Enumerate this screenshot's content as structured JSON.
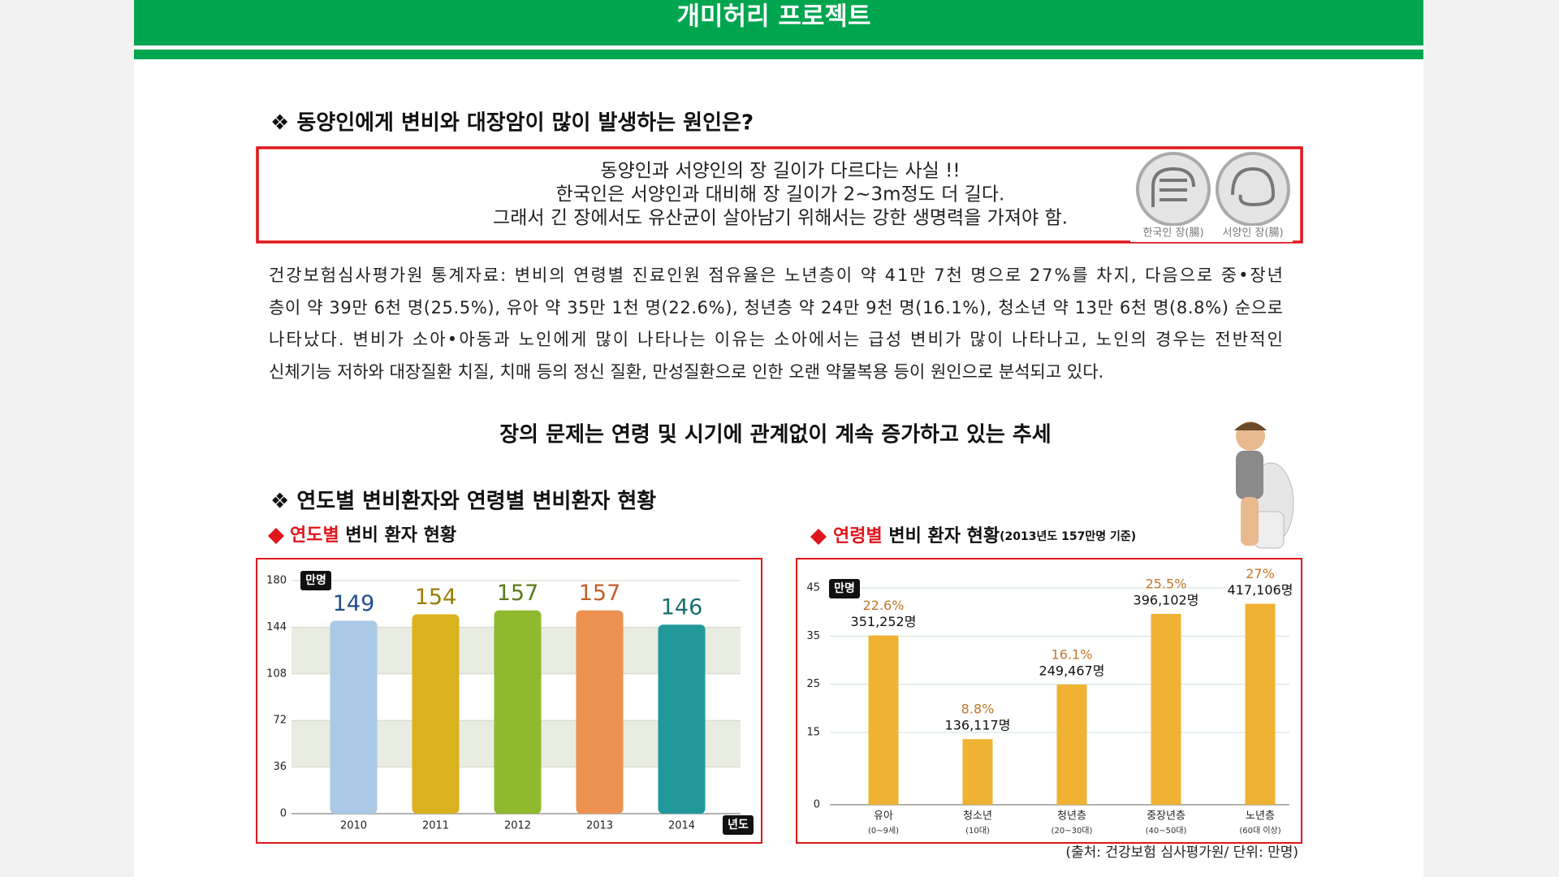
{
  "header": {
    "title": "개미허리 프로젝트"
  },
  "section1": {
    "heading": "❖ 동양인에게 변비와 대장암이 많이 발생하는 원인은?",
    "box_lines": [
      "동양인과 서양인의 장 길이가 다르다는 사실 !!",
      "한국인은 서양인과 대비해 장 길이가 2~3m정도 더 길다.",
      "그래서 긴 장에서도 유산균이 살아남기 위해서는 강한 생명력을 가져야 함."
    ],
    "icon_labels": [
      "한국인 장(腸)",
      "서양인 장(腸)"
    ]
  },
  "paragraph_lines": [
    "건강보험심사평가원 통계자료: 변비의 연령별 진료인원 점유율은 노년층이 약 41만 7천 명으로 27%를 차지, 다음으로 중•장년",
    "층이 약 39만 6천 명(25.5%), 유아 약 35만 1천 명(22.6%), 청년층 약 24만 9천 명(16.1%), 청소년 약 13만 6천 명(8.8%) 순으로",
    "나타났다. 변비가 소아•아동과 노인에게 많이 나타나는 이유는 소아에서는 급성 변비가 많이 나타나고, 노인의 경우는 전반적인",
    "신체기능 저하와 대장질환 치질, 치매 등의 정신 질환, 만성질환으로 인한 오랜 약물복용 등이 원인으로 분석되고 있다."
  ],
  "trend_heading": "장의 문제는 연령 및 시기에 관계없이 계속 증가하고 있는 추세",
  "section2": {
    "heading": "❖ 연도별 변비환자와 연령별 변비환자 현황"
  },
  "chart_data": [
    {
      "type": "bar",
      "title_highlight": "연도별",
      "title": " 변비 환자 현황",
      "categories": [
        "2010",
        "2011",
        "2012",
        "2013",
        "2014"
      ],
      "values": [
        149,
        154,
        157,
        157,
        146
      ],
      "colors": [
        "#a9c9e6",
        "#d9b21e",
        "#8fba2e",
        "#ec9150",
        "#21999a"
      ],
      "label_colors": [
        "#1f4e8c",
        "#9a7d0a",
        "#5c7a1a",
        "#c0612b",
        "#1a6e70"
      ],
      "ylim": [
        0,
        180
      ],
      "yticks": [
        0,
        36,
        72,
        108,
        144,
        180
      ],
      "y_label": "만명",
      "x_label": "년도",
      "grid": true
    },
    {
      "type": "bar",
      "title_highlight": "연령별",
      "title": " 변비 환자 현황",
      "note": "(2013년도 157만명 기준)",
      "categories": [
        "유아",
        "청소년",
        "청년층",
        "중장년층",
        "노년층"
      ],
      "category_notes": [
        "(0~9세)",
        "(10대)",
        "(20~30대)",
        "(40~50대)",
        "(60대 이상)"
      ],
      "values": [
        35.1252,
        13.6117,
        24.9467,
        39.6102,
        41.7106
      ],
      "value_labels": [
        "351,252명",
        "136,117명",
        "249,467명",
        "396,102명",
        "417,106명"
      ],
      "share_labels": [
        "22.6%",
        "8.8%",
        "16.1%",
        "25.5%",
        "27%"
      ],
      "color": "#f0b232",
      "ylim": [
        0,
        45
      ],
      "yticks": [
        0,
        15,
        25,
        35,
        45
      ],
      "y_label": "만명",
      "grid": true
    }
  ],
  "source": "(출처: 건강보험 심사평가원/ 단위: 만명)"
}
